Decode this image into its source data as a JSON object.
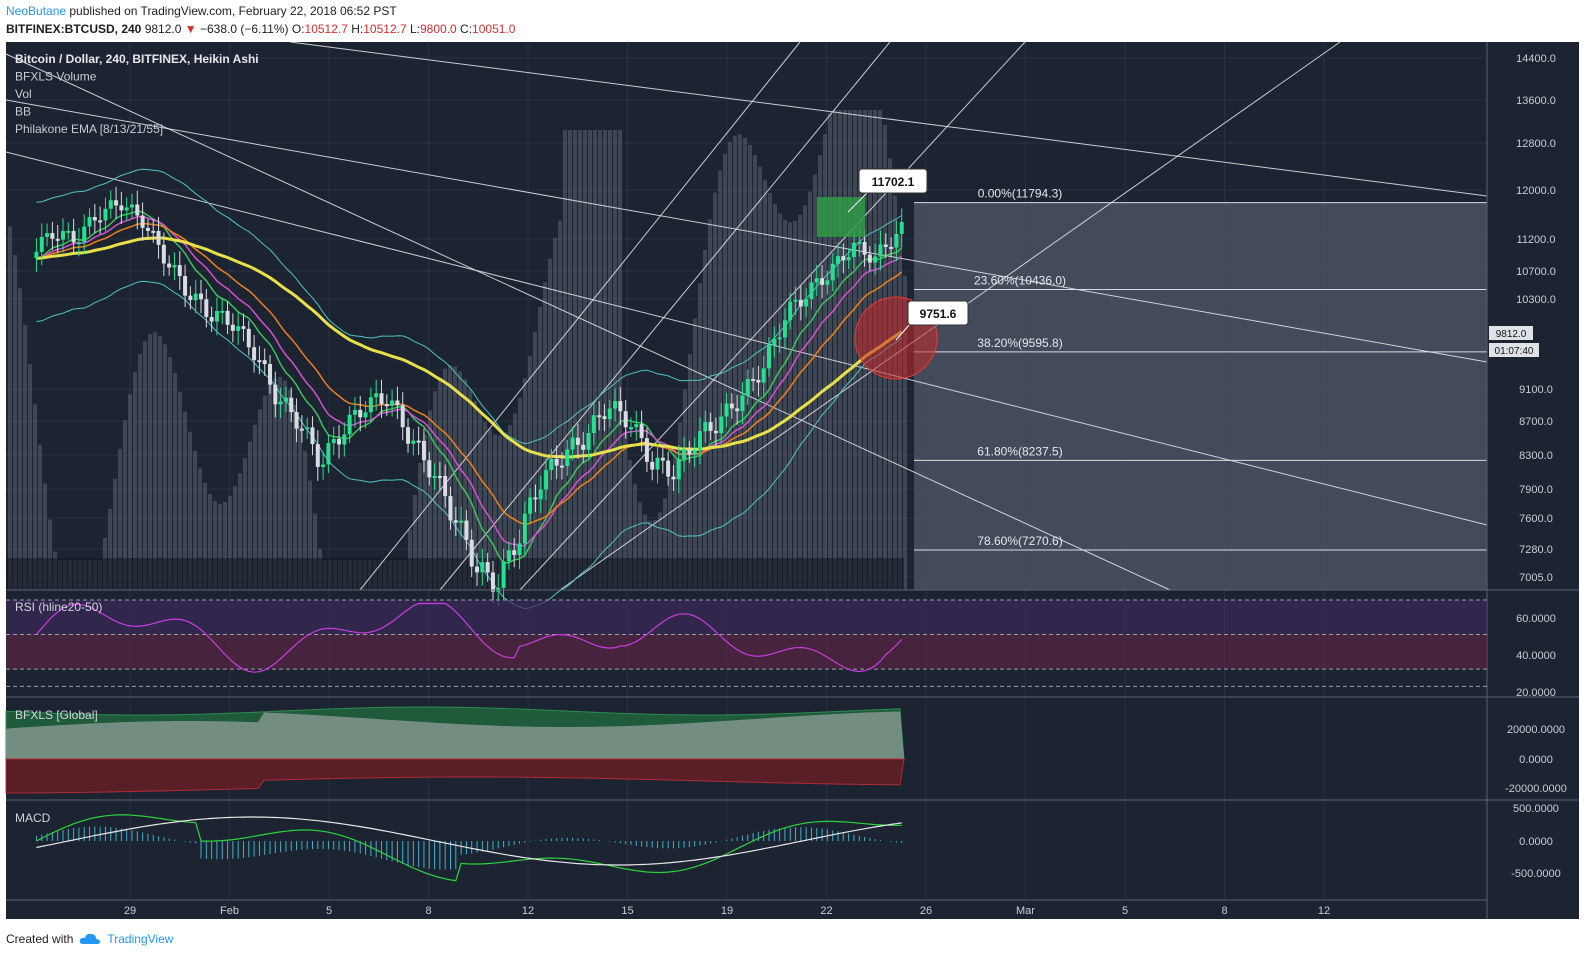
{
  "header": {
    "author": "NeoButane",
    "published": " published on TradingView.com, February 22, 2018 06:52 PST",
    "symbol": "BITFINEX:BTCUSD, 240",
    "price": "9812.0",
    "change": "−638.0 (−6.11%)",
    "o_label": "O:",
    "o_value": "10512.7",
    "h_label": "H:",
    "h_value": "10512.7",
    "l_label": "L:",
    "l_value": "9800.0",
    "c_label": "C:",
    "c_value": "10051.0"
  },
  "legend": [
    "Bitcoin / Dollar, 240, BITFINEX, Heikin Ashi",
    "BFXLS Volume",
    "Vol",
    "BB",
    "Philakone EMA [8/13/21/55]"
  ],
  "panes": {
    "rsi_label": "RSI (hline20-50)",
    "bfxls_label": "BFXLS [Global]",
    "macd_label": "MACD"
  },
  "footer": {
    "created_with": "Created with",
    "brand": "TradingView"
  },
  "colors": {
    "bg": "#1c2431",
    "grid": "#283143",
    "bull": "#26e08f",
    "bear": "#d9dde3",
    "ema55": "#e8e04a",
    "ema21": "#f07f1a",
    "ema13": "#d64fd0",
    "ema8": "#3cc25b",
    "rsi": "#c93ce0",
    "fib_box": "#4a5262",
    "circle": "#c62828",
    "green_box": "#2e9b46"
  },
  "chart_data": {
    "type": "candlestick",
    "price_axis": [
      "14400.0",
      "13600.0",
      "12800.0",
      "12000.0",
      "11200.0",
      "10700.0",
      "10300.0",
      "9100.0",
      "8700.0",
      "8300.0",
      "7900.0",
      "7600.0",
      "7280.0",
      "7005.0"
    ],
    "last_price_tag": "9812.0",
    "countdown_tag": "01:07:40",
    "time_axis": [
      "29",
      "Feb",
      "5",
      "8",
      "12",
      "15",
      "19",
      "22",
      "26",
      "Mar",
      "5",
      "8",
      "12"
    ],
    "callouts": [
      {
        "label": "11702.1",
        "value": 11702.1
      },
      {
        "label": "9751.6",
        "value": 9751.6
      }
    ],
    "fib_levels": [
      {
        "label": "0.00%(11794.3)",
        "value": 11794.3
      },
      {
        "label": "23.60%(10436.0)",
        "value": 10436.0
      },
      {
        "label": "38.20%(9595.8)",
        "value": 9595.8
      },
      {
        "label": "61.80%(8237.5)",
        "value": 8237.5
      },
      {
        "label": "78.60%(7270.6)",
        "value": 7270.6
      }
    ],
    "price_path": [
      [
        26.0,
        11000
      ],
      [
        26.7,
        11300
      ],
      [
        27.4,
        11200
      ],
      [
        28.1,
        11600
      ],
      [
        28.8,
        11800
      ],
      [
        29.5,
        11500
      ],
      [
        30.2,
        10900
      ],
      [
        30.9,
        10400
      ],
      [
        31.6,
        10100
      ],
      [
        32.3,
        10000
      ],
      [
        33.0,
        9600
      ],
      [
        33.7,
        9000
      ],
      [
        34.4,
        8700
      ],
      [
        35.1,
        8200
      ],
      [
        35.8,
        8600
      ],
      [
        36.5,
        8900
      ],
      [
        37.2,
        9000
      ],
      [
        37.9,
        8500
      ],
      [
        38.6,
        8100
      ],
      [
        39.3,
        7600
      ],
      [
        40.0,
        7100
      ],
      [
        40.6,
        6900
      ],
      [
        41.3,
        7400
      ],
      [
        42.0,
        8000
      ],
      [
        42.7,
        8300
      ],
      [
        43.4,
        8500
      ],
      [
        44.1,
        8900
      ],
      [
        44.8,
        8700
      ],
      [
        45.5,
        8200
      ],
      [
        46.2,
        8100
      ],
      [
        46.9,
        8500
      ],
      [
        47.6,
        8700
      ],
      [
        48.3,
        9000
      ],
      [
        49.0,
        9400
      ],
      [
        49.7,
        10100
      ],
      [
        50.4,
        10400
      ],
      [
        51.1,
        10700
      ],
      [
        51.8,
        11100
      ],
      [
        52.5,
        10900
      ],
      [
        53.2,
        11300
      ],
      [
        53.9,
        11600
      ],
      [
        54.3,
        11700
      ],
      [
        54.8,
        11300
      ],
      [
        55.3,
        10800
      ],
      [
        55.8,
        10300
      ],
      [
        56.1,
        9812
      ]
    ],
    "rsi_axis": [
      "60.0000",
      "40.0000",
      "20.0000"
    ],
    "bfxls_axis": [
      "20000.0000",
      "0.0000",
      "-20000.0000"
    ],
    "macd_axis": [
      "500.0000",
      "0.0000",
      "-500.0000"
    ]
  }
}
